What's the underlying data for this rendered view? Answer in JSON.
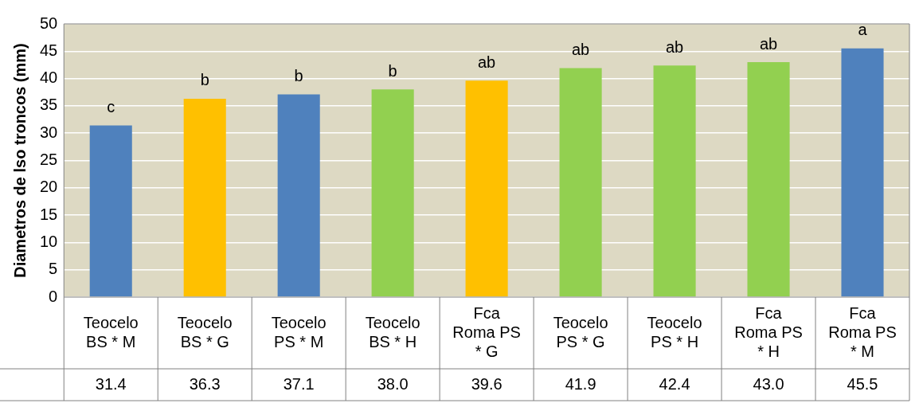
{
  "chart_data": {
    "type": "bar",
    "ylabel": "Diametros de lso troncos (mm)",
    "categories": [
      "Teocelo BS * M",
      "Teocelo BS * G",
      "Teocelo PS * M",
      "Teocelo BS * H",
      "Fca Roma PS * G",
      "Teocelo PS * G",
      "Teocelo PS * H",
      "Fca Roma PS * H",
      "Fca Roma PS * M"
    ],
    "values": [
      31.4,
      36.3,
      37.1,
      38.0,
      39.6,
      41.9,
      42.4,
      43.0,
      45.5
    ],
    "value_labels": [
      "31.4",
      "36.3",
      "37.1",
      "38.0",
      "39.6",
      "41.9",
      "42.4",
      "43.0",
      "45.5"
    ],
    "colors": [
      "#4f81bd",
      "#ffc000",
      "#4f81bd",
      "#92d050",
      "#ffc000",
      "#92d050",
      "#92d050",
      "#92d050",
      "#4f81bd"
    ],
    "ylim": [
      0,
      50
    ],
    "yticks": [
      0,
      5,
      10,
      15,
      20,
      25,
      30,
      35,
      40,
      45,
      50
    ],
    "grid": "y",
    "legend": false,
    "annotations": [
      {
        "text": "c",
        "x": "Teocelo BS * M",
        "y": 31.4
      },
      {
        "text": "b",
        "x": "Teocelo BS * G",
        "y": 36.3
      },
      {
        "text": "b",
        "x": "Teocelo PS * M",
        "y": 37.1
      },
      {
        "text": "b",
        "x": "Teocelo BS * H",
        "y": 38.0
      },
      {
        "text": "ab",
        "x": "Fca Roma PS * G",
        "y": 39.6
      },
      {
        "text": "ab",
        "x": "Teocelo PS * G",
        "y": 41.9
      },
      {
        "text": "ab",
        "x": "Teocelo PS * H",
        "y": 42.4
      },
      {
        "text": "ab",
        "x": "Fca Roma PS * H",
        "y": 43.0
      },
      {
        "text": "a",
        "x": "Fca Roma PS * M",
        "y": 45.5
      }
    ]
  }
}
